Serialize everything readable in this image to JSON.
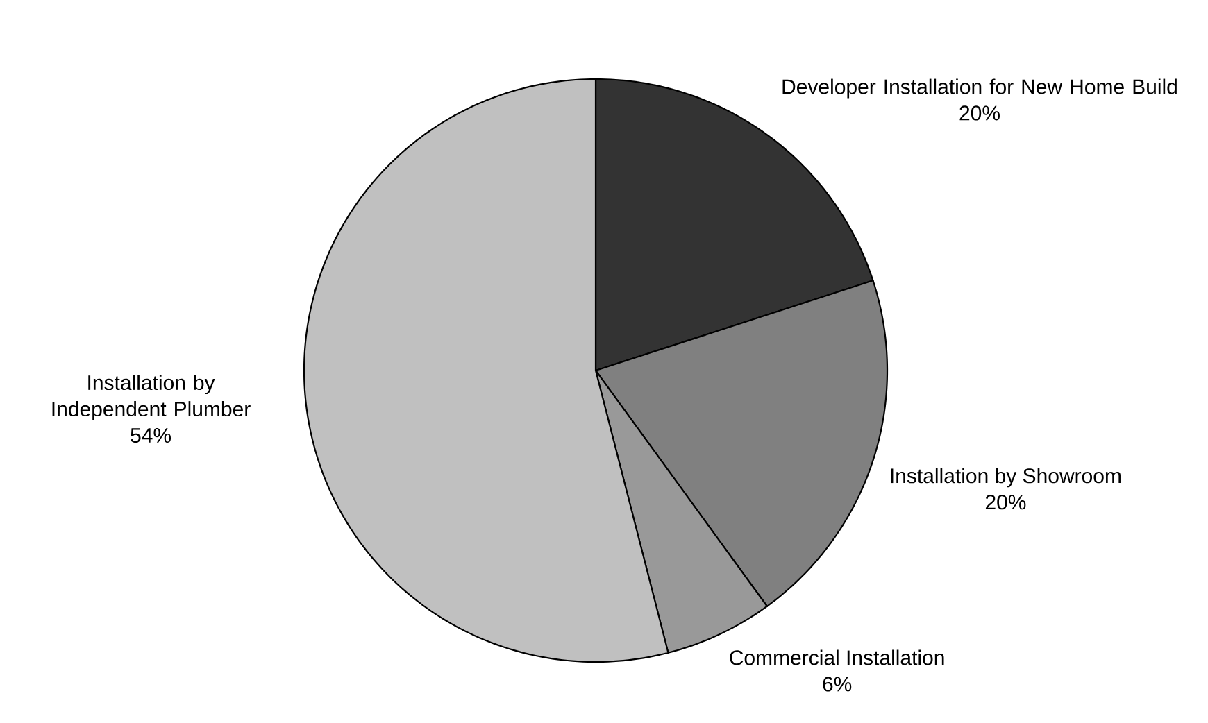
{
  "chart_data": {
    "type": "pie",
    "categories": [
      "Developer Installation for New Home Build",
      "Installation by Showroom",
      "Commercial Installation",
      "Installation by Independent Plumber"
    ],
    "values": [
      20,
      20,
      6,
      54
    ],
    "value_labels": [
      "20%",
      "20%",
      "6%",
      "54%"
    ],
    "colors": [
      "#333333",
      "#808080",
      "#999999",
      "#c0c0c0"
    ]
  }
}
